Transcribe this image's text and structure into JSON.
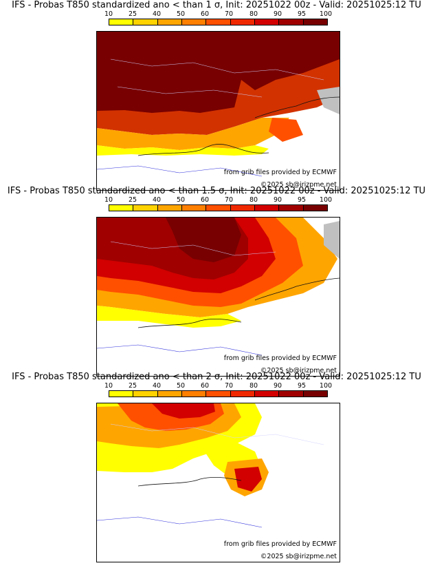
{
  "colorbar": {
    "labels": [
      "10",
      "25",
      "40",
      "50",
      "60",
      "70",
      "80",
      "90",
      "95",
      "100"
    ],
    "colors": [
      "#ffff00",
      "#ffd200",
      "#ffa500",
      "#ff7f00",
      "#ff5000",
      "#f02800",
      "#d20000",
      "#a00000",
      "#780000"
    ]
  },
  "panels": [
    {
      "title": "IFS - Probas T850  standardized ano < than 1 σ, Init: 20251022 00z - Valid: 20251025:12 TU",
      "source_credit": "from grib files provided by ECMWF",
      "copyright": "©2025 sb@irizpme.net"
    },
    {
      "title": "IFS - Probas T850  standardized ano < than 1.5 σ, Init: 20251022 00z - Valid: 20251025:12 TU",
      "source_credit": "from grib files provided by ECMWF",
      "copyright": "©2025 sb@irizpme.net"
    },
    {
      "title": "IFS - Probas T850  standardized ano < than 2 σ, Init: 20251022 00z - Valid: 20251025:12 TU",
      "source_credit": "from grib files provided by ECMWF",
      "copyright": "©2025 sb@irizpme.net"
    }
  ]
}
